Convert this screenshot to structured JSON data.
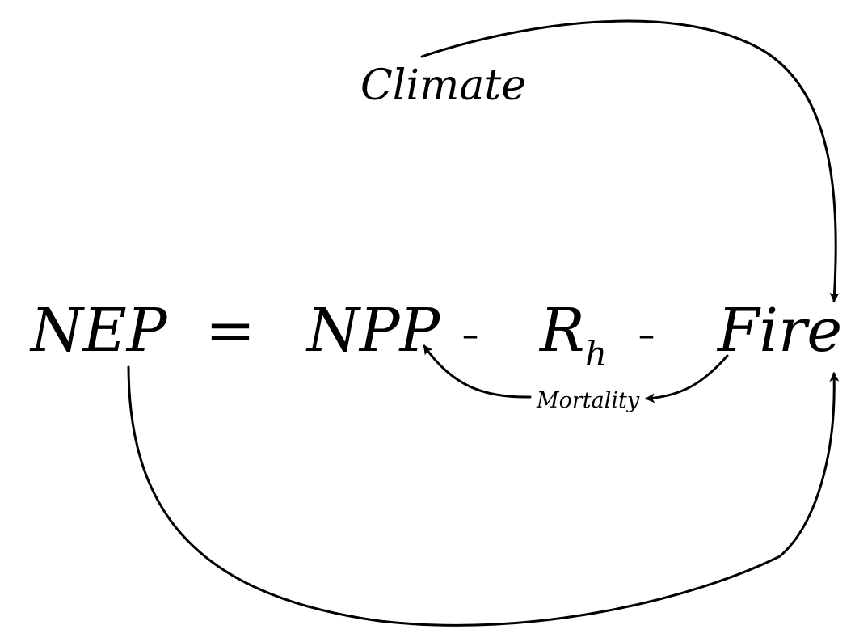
{
  "equation": {
    "lhs": "NEP",
    "equals": "=",
    "term_npp": "NPP",
    "minus_1": "–",
    "term_r": "R",
    "term_r_subscript": "h",
    "minus_2": "–",
    "term_fire": "Fire"
  },
  "labels": {
    "climate": "Climate",
    "mortality": "Mortality"
  },
  "arrows": [
    {
      "from": "Climate",
      "to": "Fire"
    },
    {
      "from": "Fire",
      "to": "NPP",
      "via": "Mortality"
    },
    {
      "from": "Fire",
      "to": "Mortality"
    },
    {
      "from": "NEP",
      "to": "Fire"
    }
  ]
}
